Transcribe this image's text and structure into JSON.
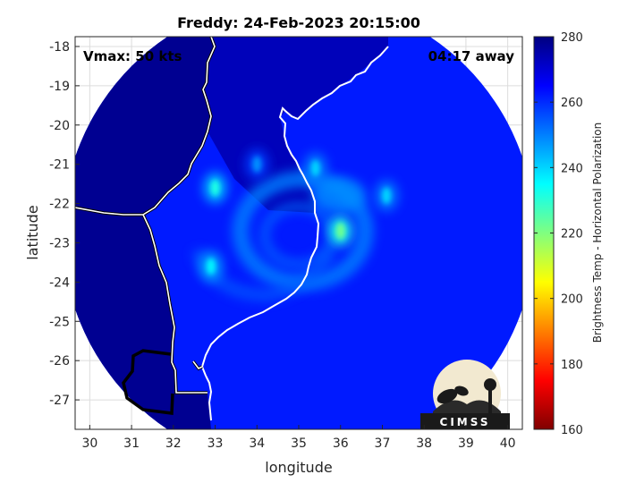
{
  "chart_data": {
    "type": "heatmap",
    "title": "Freddy: 24-Feb-2023 20:15:00",
    "xlabel": "longitude",
    "ylabel": "latitude",
    "xlim": [
      29.65,
      40.35
    ],
    "ylim": [
      -27.75,
      -17.75
    ],
    "xticks": [
      "30",
      "31",
      "32",
      "33",
      "34",
      "35",
      "36",
      "37",
      "38",
      "39",
      "40"
    ],
    "yticks": [
      "-18",
      "-19",
      "-20",
      "-21",
      "-22",
      "-23",
      "-24",
      "-25",
      "-26",
      "-27"
    ],
    "grid": true,
    "annotations": {
      "left": "Vmax: 50 kts",
      "right": "04:17 away"
    },
    "colorbar": {
      "label": "Brightness Temp - Horizontal Polarization",
      "range": [
        160,
        280
      ],
      "ticks": [
        "160",
        "180",
        "200",
        "220",
        "240",
        "260",
        "280"
      ],
      "colormap": "jet"
    },
    "swath": {
      "center_lon": 35.0,
      "center_lat": -22.75,
      "radius_deg": 5.65
    },
    "background_tb": 262,
    "land_tb": 278,
    "storm": {
      "center_lon": 35.1,
      "center_lat": -22.7,
      "warm_spots": [
        {
          "lon": 33.0,
          "lat": -21.6,
          "tb": 232
        },
        {
          "lon": 36.0,
          "lat": -22.7,
          "tb": 222
        },
        {
          "lon": 35.4,
          "lat": -21.1,
          "tb": 240
        },
        {
          "lon": 37.1,
          "lat": -21.8,
          "tb": 240
        },
        {
          "lon": 32.9,
          "lat": -23.6,
          "tb": 236
        },
        {
          "lon": 34.0,
          "lat": -21.0,
          "tb": 248
        }
      ]
    },
    "logo": {
      "text": "CIMSS"
    }
  }
}
